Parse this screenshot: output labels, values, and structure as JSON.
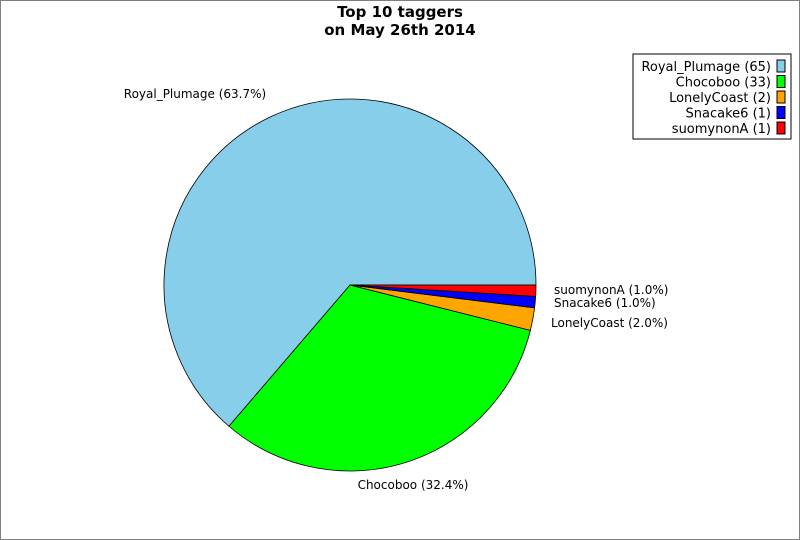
{
  "chart_data": {
    "type": "pie",
    "title_line1": "Top 10 taggers",
    "title_line2": "on May 26th 2014",
    "slices": [
      {
        "name": "Royal_Plumage",
        "value": 65,
        "percent_label": "Royal_Plumage (63.7%)",
        "legend_label": "Royal_Plumage (65)",
        "color": "#87ceeb"
      },
      {
        "name": "Chocoboo",
        "value": 33,
        "percent_label": "Chocoboo (32.4%)",
        "legend_label": "Chocoboo (33)",
        "color": "#00ff00"
      },
      {
        "name": "LonelyCoast",
        "value": 2,
        "percent_label": "LonelyCoast (2.0%)",
        "legend_label": "LonelyCoast (2)",
        "color": "#ffa500"
      },
      {
        "name": "Snacake6",
        "value": 1,
        "percent_label": "Snacake6 (1.0%)",
        "legend_label": "Snacake6 (1)",
        "color": "#0000ff"
      },
      {
        "name": "suomynonA",
        "value": 1,
        "percent_label": "suomynonA (1.0%)",
        "legend_label": "suomynonA (1)",
        "color": "#ff0000"
      }
    ],
    "legend_position": "top-right"
  }
}
